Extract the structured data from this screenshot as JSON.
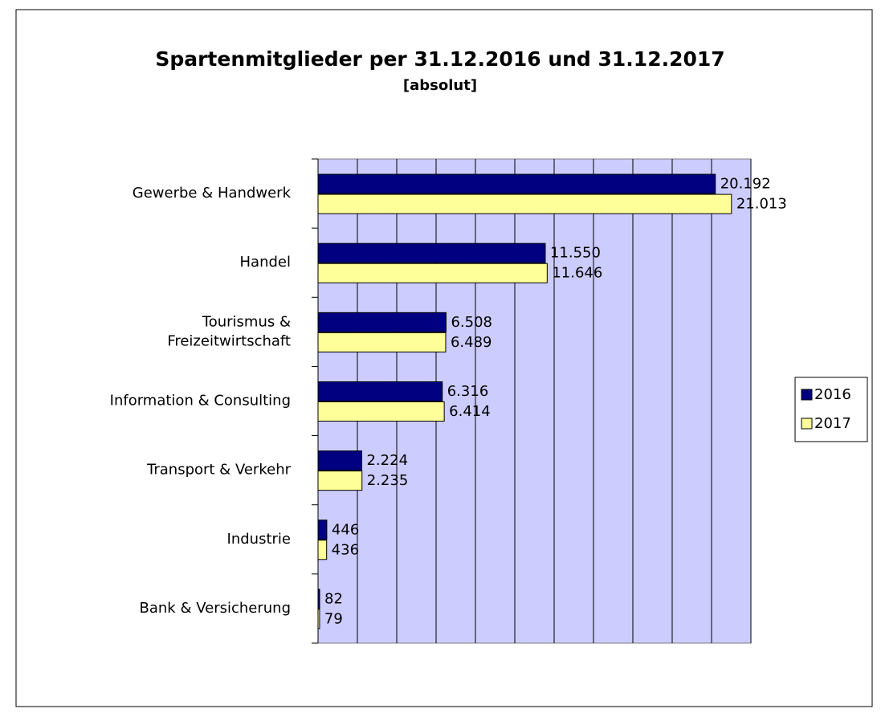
{
  "chart_data": {
    "type": "hbar",
    "title": "Spartenmitglieder per 31.12.2016 und 31.12.2017",
    "subtitle": "[absolut]",
    "categories": [
      "Gewerbe & Handwerk",
      "Handel",
      "Tourismus &\nFreizeitwirtschaft",
      "Information & Consulting",
      "Transport & Verkehr",
      "Industrie",
      "Bank & Versicherung"
    ],
    "series": [
      {
        "name": "2016",
        "color": "#000080",
        "values": [
          20192,
          11550,
          6508,
          6316,
          2224,
          446,
          82
        ],
        "value_labels": [
          "20.192",
          "11.550",
          "6.508",
          "6.316",
          "2.224",
          "446",
          "82"
        ]
      },
      {
        "name": "2017",
        "color": "#ffff99",
        "values": [
          21013,
          11646,
          6489,
          6414,
          2235,
          436,
          79
        ],
        "value_labels": [
          "21.013",
          "11.646",
          "6.489",
          "6.414",
          "2.235",
          "436",
          "79"
        ]
      }
    ],
    "xlim": [
      0,
      22000
    ],
    "xticks": [
      0,
      2000,
      4000,
      6000,
      8000,
      10000,
      12000,
      14000,
      16000,
      18000,
      20000,
      22000
    ],
    "grid": true,
    "legend": "right",
    "plot_background": "#ccccff"
  }
}
